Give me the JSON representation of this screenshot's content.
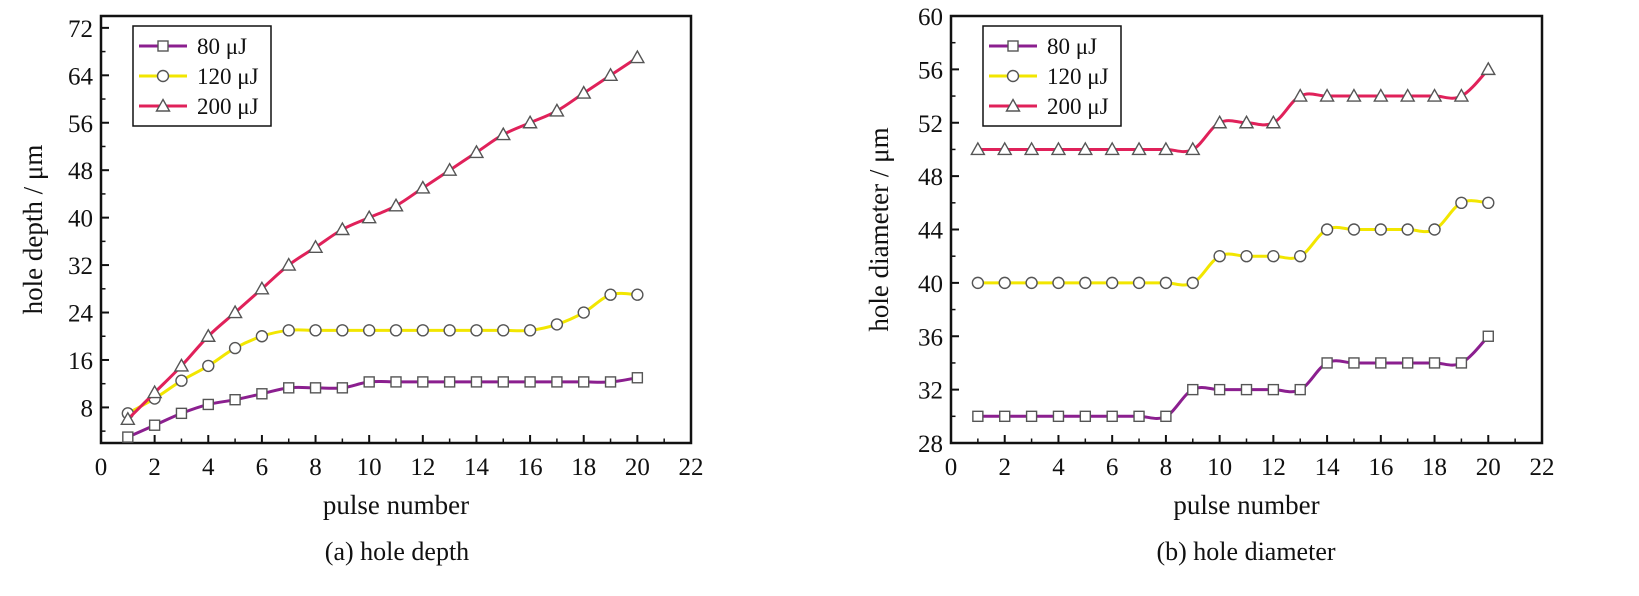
{
  "chart_data": [
    {
      "type": "line",
      "caption": "(a) hole depth",
      "xlabel": "pulse  number",
      "ylabel": "hole depth / μm",
      "xlim": [
        0,
        22
      ],
      "ylim": [
        2,
        74
      ],
      "xticks": [
        0,
        2,
        4,
        6,
        8,
        10,
        12,
        14,
        16,
        18,
        20,
        22
      ],
      "yticks": [
        8,
        16,
        24,
        32,
        40,
        48,
        56,
        64,
        72
      ],
      "grid": false,
      "legend_position": "top-left",
      "x": [
        1,
        2,
        3,
        4,
        5,
        6,
        7,
        8,
        9,
        10,
        11,
        12,
        13,
        14,
        15,
        16,
        17,
        18,
        19,
        20
      ],
      "series": [
        {
          "name": "80 μJ",
          "marker": "square",
          "color": "#8B1F8F",
          "values": [
            3,
            5,
            7,
            8.5,
            9.3,
            10.3,
            11.3,
            11.3,
            11.3,
            12.3,
            12.3,
            12.3,
            12.3,
            12.3,
            12.3,
            12.3,
            12.3,
            12.3,
            12.3,
            13
          ]
        },
        {
          "name": "120 μJ",
          "marker": "circle",
          "color": "#F2E600",
          "values": [
            7,
            9.5,
            12.5,
            15,
            18,
            20,
            21,
            21,
            21,
            21,
            21,
            21,
            21,
            21,
            21,
            21,
            22,
            24,
            27,
            27
          ]
        },
        {
          "name": "200 μJ",
          "marker": "triangle",
          "color": "#E0215A",
          "values": [
            6,
            10.5,
            15,
            20,
            24,
            28,
            32,
            35,
            38,
            40,
            42,
            45,
            48,
            51,
            54,
            56,
            58,
            61,
            64,
            67
          ]
        }
      ]
    },
    {
      "type": "line",
      "caption": "(b) hole diameter",
      "xlabel": "pulse  number",
      "ylabel": "hole diameter / μm",
      "xlim": [
        0,
        22
      ],
      "ylim": [
        28,
        60
      ],
      "xticks": [
        0,
        2,
        4,
        6,
        8,
        10,
        12,
        14,
        16,
        18,
        20,
        22
      ],
      "yticks": [
        28,
        32,
        36,
        40,
        44,
        48,
        52,
        56,
        60
      ],
      "grid": false,
      "legend_position": "top-left",
      "x": [
        1,
        2,
        3,
        4,
        5,
        6,
        7,
        8,
        9,
        10,
        11,
        12,
        13,
        14,
        15,
        16,
        17,
        18,
        19,
        20
      ],
      "series": [
        {
          "name": "80 μJ",
          "marker": "square",
          "color": "#8B1F8F",
          "values": [
            30,
            30,
            30,
            30,
            30,
            30,
            30,
            30,
            32,
            32,
            32,
            32,
            32,
            34,
            34,
            34,
            34,
            34,
            34,
            36
          ]
        },
        {
          "name": "120 μJ",
          "marker": "circle",
          "color": "#F2E600",
          "values": [
            40,
            40,
            40,
            40,
            40,
            40,
            40,
            40,
            40,
            42,
            42,
            42,
            42,
            44,
            44,
            44,
            44,
            44,
            46,
            46
          ]
        },
        {
          "name": "200 μJ",
          "marker": "triangle",
          "color": "#E0215A",
          "values": [
            50,
            50,
            50,
            50,
            50,
            50,
            50,
            50,
            50,
            52,
            52,
            52,
            54,
            54,
            54,
            54,
            54,
            54,
            54,
            56
          ]
        }
      ]
    }
  ]
}
